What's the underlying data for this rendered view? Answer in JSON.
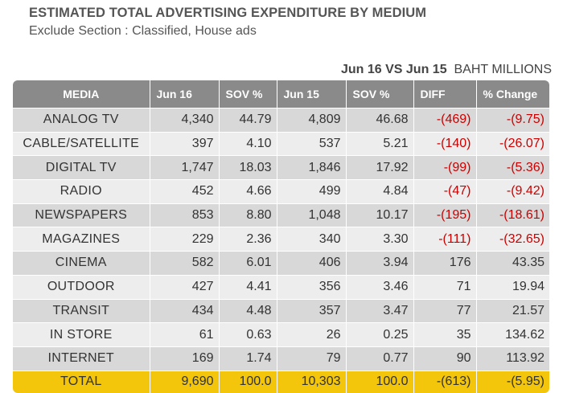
{
  "header": {
    "title": "ESTIMATED TOTAL ADVERTISING EXPENDITURE BY MEDIUM",
    "subtitle": "Exclude Section : Classified, House ads",
    "period_bold": "Jun 16 VS Jun 15",
    "period_unit": "BAHT MILLIONS"
  },
  "table": {
    "columns": [
      "MEDIA",
      "Jun 16",
      "SOV %",
      "Jun 15",
      "SOV %",
      "DIFF",
      "% Change"
    ],
    "rows": [
      {
        "media": "ANALOG   TV",
        "jun16": "4,340",
        "sov16": "44.79",
        "jun15": "4,809",
        "sov15": "46.68",
        "diff": "-(469)",
        "change": "-(9.75)",
        "negative": true
      },
      {
        "media": "CABLE/SATELLITE",
        "jun16": "397",
        "sov16": "4.10",
        "jun15": "537",
        "sov15": "5.21",
        "diff": "-(140)",
        "change": "-(26.07)",
        "negative": true
      },
      {
        "media": "DIGITAL TV",
        "jun16": "1,747",
        "sov16": "18.03",
        "jun15": "1,846",
        "sov15": "17.92",
        "diff": "-(99)",
        "change": "-(5.36)",
        "negative": true
      },
      {
        "media": "RADIO",
        "jun16": "452",
        "sov16": "4.66",
        "jun15": "499",
        "sov15": "4.84",
        "diff": "-(47)",
        "change": "-(9.42)",
        "negative": true
      },
      {
        "media": "NEWSPAPERS",
        "jun16": "853",
        "sov16": "8.80",
        "jun15": "1,048",
        "sov15": "10.17",
        "diff": "-(195)",
        "change": "-(18.61)",
        "negative": true
      },
      {
        "media": "MAGAZINES",
        "jun16": "229",
        "sov16": "2.36",
        "jun15": "340",
        "sov15": "3.30",
        "diff": "-(111)",
        "change": "-(32.65)",
        "negative": true
      },
      {
        "media": "CINEMA",
        "jun16": "582",
        "sov16": "6.01",
        "jun15": "406",
        "sov15": "3.94",
        "diff": "176",
        "change": "43.35",
        "negative": false
      },
      {
        "media": "OUTDOOR",
        "jun16": "427",
        "sov16": "4.41",
        "jun15": "356",
        "sov15": "3.46",
        "diff": "71",
        "change": "19.94",
        "negative": false
      },
      {
        "media": "TRANSIT",
        "jun16": "434",
        "sov16": "4.48",
        "jun15": "357",
        "sov15": "3.47",
        "diff": "77",
        "change": "21.57",
        "negative": false
      },
      {
        "media": "IN STORE",
        "jun16": "61",
        "sov16": "0.63",
        "jun15": "26",
        "sov15": "0.25",
        "diff": "35",
        "change": "134.62",
        "negative": false
      },
      {
        "media": "INTERNET",
        "jun16": "169",
        "sov16": "1.74",
        "jun15": "79",
        "sov15": "0.77",
        "diff": "90",
        "change": "113.92",
        "negative": false
      }
    ],
    "total": {
      "media": "TOTAL",
      "jun16": "9,690",
      "sov16": "100.0",
      "jun15": "10,303",
      "sov15": "100.0",
      "diff": "-(613)",
      "change": "-(5.95)",
      "negative": true
    }
  },
  "colors": {
    "header_bg": "#8a8a8a",
    "row_odd": "#d8d8d8",
    "row_even": "#ededed",
    "total_bg": "#f3c50b",
    "negative": "#cc0000"
  }
}
